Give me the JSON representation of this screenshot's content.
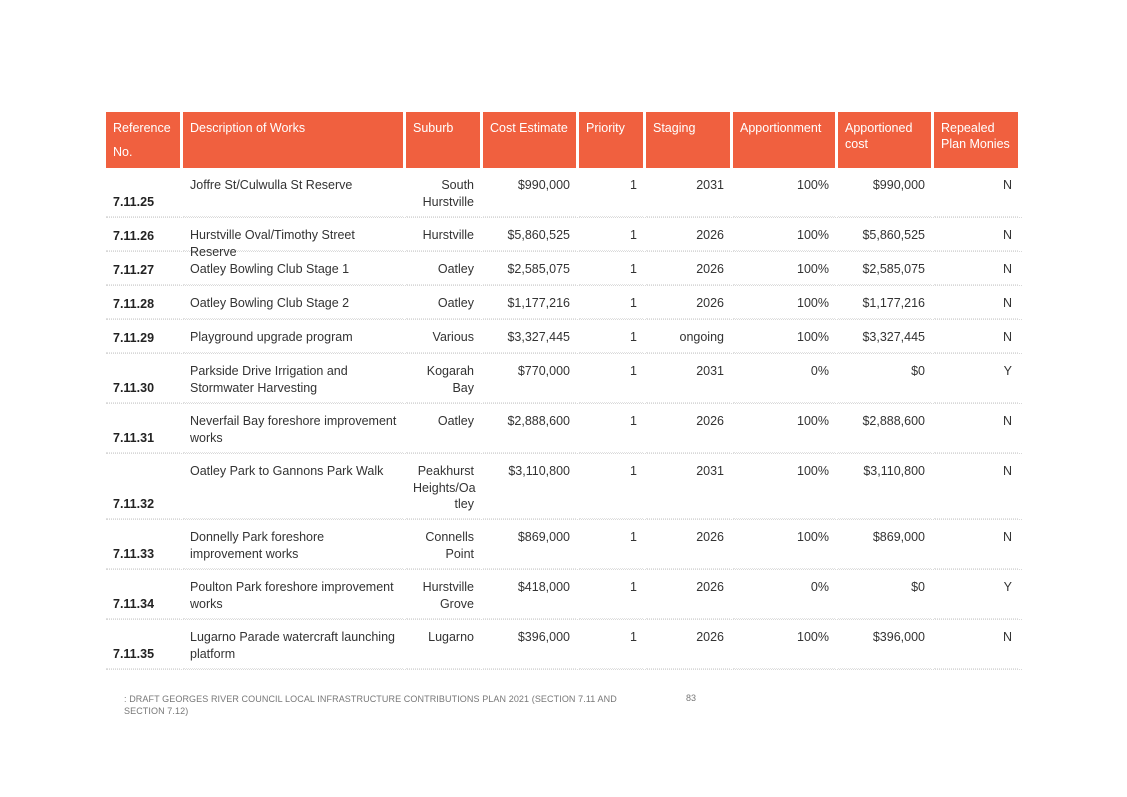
{
  "table": {
    "headers": [
      "Reference No.",
      "Description of Works",
      "Suburb",
      "Cost Estimate",
      "Priority",
      "Staging",
      "Apportionment",
      "Apportioned cost",
      "Repealed Plan Monies"
    ],
    "rows": [
      {
        "ref": "7.11.25",
        "description": "Joffre St/Culwulla St Reserve",
        "suburb": "South Hurstville",
        "cost": "$990,000",
        "priority": "1",
        "staging": "2031",
        "apportionment": "100%",
        "apportioned_cost": "$990,000",
        "repealed": "N"
      },
      {
        "ref": "7.11.26",
        "description": "Hurstville Oval/Timothy Street Reserve",
        "suburb": "Hurstville",
        "cost": "$5,860,525",
        "priority": "1",
        "staging": "2026",
        "apportionment": "100%",
        "apportioned_cost": "$5,860,525",
        "repealed": "N"
      },
      {
        "ref": "7.11.27",
        "description": "Oatley Bowling Club Stage 1",
        "suburb": "Oatley",
        "cost": "$2,585,075",
        "priority": "1",
        "staging": "2026",
        "apportionment": "100%",
        "apportioned_cost": "$2,585,075",
        "repealed": "N"
      },
      {
        "ref": "7.11.28",
        "description": "Oatley Bowling Club Stage 2",
        "suburb": "Oatley",
        "cost": "$1,177,216",
        "priority": "1",
        "staging": "2026",
        "apportionment": "100%",
        "apportioned_cost": "$1,177,216",
        "repealed": "N"
      },
      {
        "ref": "7.11.29",
        "description": "Playground upgrade program",
        "suburb": "Various",
        "cost": "$3,327,445",
        "priority": "1",
        "staging": "ongoing",
        "apportionment": "100%",
        "apportioned_cost": "$3,327,445",
        "repealed": "N"
      },
      {
        "ref": "7.11.30",
        "description": "Parkside Drive Irrigation and Stormwater Harvesting",
        "suburb": "Kogarah Bay",
        "cost": "$770,000",
        "priority": "1",
        "staging": "2031",
        "apportionment": "0%",
        "apportioned_cost": "$0",
        "repealed": "Y"
      },
      {
        "ref": "7.11.31",
        "description": "Neverfail Bay foreshore improvement works",
        "suburb": "Oatley",
        "cost": "$2,888,600",
        "priority": "1",
        "staging": "2026",
        "apportionment": "100%",
        "apportioned_cost": "$2,888,600",
        "repealed": "N"
      },
      {
        "ref": "7.11.32",
        "description": "Oatley Park to Gannons Park Walk",
        "suburb": "Peakhurst Heights/Oa tley",
        "cost": "$3,110,800",
        "priority": "1",
        "staging": "2031",
        "apportionment": "100%",
        "apportioned_cost": "$3,110,800",
        "repealed": "N"
      },
      {
        "ref": "7.11.33",
        "description": "Donnelly Park foreshore improvement works",
        "suburb": "Connells Point",
        "cost": "$869,000",
        "priority": "1",
        "staging": "2026",
        "apportionment": "100%",
        "apportioned_cost": "$869,000",
        "repealed": "N"
      },
      {
        "ref": "7.11.34",
        "description": "Poulton Park foreshore improvement works",
        "suburb": "Hurstville Grove",
        "cost": "$418,000",
        "priority": "1",
        "staging": "2026",
        "apportionment": "0%",
        "apportioned_cost": "$0",
        "repealed": "Y"
      },
      {
        "ref": "7.11.35",
        "description": "Lugarno Parade watercraft launching platform",
        "suburb": "Lugarno",
        "cost": "$396,000",
        "priority": "1",
        "staging": "2026",
        "apportionment": "100%",
        "apportioned_cost": "$396,000",
        "repealed": "N"
      }
    ]
  },
  "footer": {
    "text": ": DRAFT GEORGES RIVER COUNCIL LOCAL INFRASTRUCTURE CONTRIBUTIONS PLAN 2021 (SECTION 7.11 AND SECTION 7.12)",
    "page_number": "83"
  }
}
